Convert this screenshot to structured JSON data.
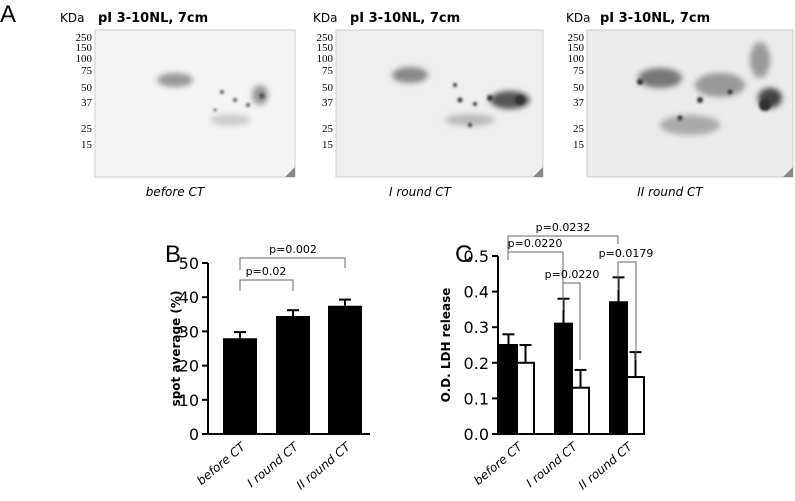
{
  "panel_labels": [
    "A",
    "B",
    "C"
  ],
  "gels": [
    {
      "unit": "KDa",
      "title": "pI 3-10NL, 7cm",
      "markers": [
        "250",
        "150",
        "100",
        "75",
        "50",
        "37",
        "25",
        "15"
      ],
      "caption": "before CT"
    },
    {
      "unit": "KDa",
      "title": "pI 3-10NL, 7cm",
      "markers": [
        "250",
        "150",
        "100",
        "75",
        "50",
        "37",
        "25",
        "15"
      ],
      "caption": "I round CT"
    },
    {
      "unit": "KDa",
      "title": "pI 3-10NL, 7cm",
      "markers": [
        "250",
        "150",
        "100",
        "75",
        "50",
        "37",
        "25",
        "15"
      ],
      "caption": "II round CT"
    }
  ],
  "chart_data": [
    {
      "type": "bar",
      "ylabel": "spot average (%)",
      "categories": [
        "before CT",
        "I round CT",
        "II round CT"
      ],
      "values": [
        28,
        34.5,
        37.5
      ],
      "errors": [
        1.8,
        1.7,
        1.8
      ],
      "color": "#000000",
      "ylim": [
        0,
        50
      ],
      "yticks": [
        0,
        10,
        20,
        30,
        40,
        50
      ],
      "annotations": [
        "p=0.02",
        "p=0.002"
      ]
    },
    {
      "type": "grouped_bar",
      "ylabel": "O.D. LDH release",
      "categories": [
        "before CT",
        "I round CT",
        "II round CT"
      ],
      "series": [
        {
          "color": "#000000",
          "values": [
            0.25,
            0.31,
            0.37
          ],
          "errors": [
            0.03,
            0.07,
            0.07
          ]
        },
        {
          "color": "#ffffff",
          "values": [
            0.2,
            0.13,
            0.16
          ],
          "errors": [
            0.05,
            0.05,
            0.07
          ]
        }
      ],
      "ylim": [
        0,
        0.5
      ],
      "yticks": [
        {
          "value": 0,
          "label": "0.0"
        },
        0.1,
        0.2,
        0.3,
        0.4,
        0.5
      ],
      "annotations": [
        "p=0.0232",
        "p=0.0220",
        "p=0.0220",
        "p=0.0179"
      ]
    }
  ]
}
